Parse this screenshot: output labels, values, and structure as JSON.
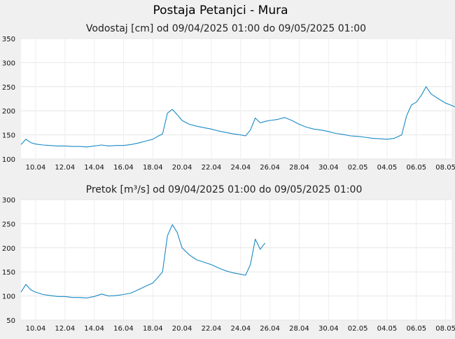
{
  "page": {
    "title": "Postaja Petanjci - Mura"
  },
  "chart_data": [
    {
      "type": "line",
      "title": "Vodostaj [cm] od 09/04/2025 01:00 do 09/05/2025 01:00",
      "xlabel": "",
      "ylabel": "",
      "x_unit": "day",
      "xlim": [
        "2025-04-09",
        "2025-05-08"
      ],
      "xticks": [
        "10.04",
        "12.04",
        "14.04",
        "16.04",
        "18.04",
        "20.04",
        "22.04",
        "24.04",
        "26.04",
        "28.04",
        "30.04",
        "02.05",
        "04.05",
        "06.05",
        "08.05"
      ],
      "ylim": [
        100,
        350
      ],
      "yticks": [
        100,
        150,
        200,
        250,
        300,
        350
      ],
      "grid": true,
      "line_color": "#1a8ac6",
      "series": [
        {
          "name": "",
          "points": [
            [
              "09.04",
              130
            ],
            [
              "09.04",
              141
            ],
            [
              "09.04",
              134
            ],
            [
              "10.04",
              131
            ],
            [
              "10.04",
              129
            ],
            [
              "11.04",
              128
            ],
            [
              "11.04",
              127
            ],
            [
              "12.04",
              127
            ],
            [
              "12.04",
              126
            ],
            [
              "13.04",
              126
            ],
            [
              "13.04",
              125
            ],
            [
              "14.04",
              127
            ],
            [
              "14.04",
              129
            ],
            [
              "15.04",
              127
            ],
            [
              "15.04",
              128
            ],
            [
              "16.04",
              128
            ],
            [
              "16.04",
              130
            ],
            [
              "17.04",
              133
            ],
            [
              "17.04",
              137
            ],
            [
              "18.04",
              141
            ],
            [
              "18.04",
              147
            ],
            [
              "18.04",
              152
            ],
            [
              "19.04",
              195
            ],
            [
              "19.04",
              203
            ],
            [
              "19.04",
              192
            ],
            [
              "20.04",
              180
            ],
            [
              "20.04",
              172
            ],
            [
              "21.04",
              168
            ],
            [
              "21.04",
              165
            ],
            [
              "22.04",
              162
            ],
            [
              "22.04",
              158
            ],
            [
              "23.04",
              155
            ],
            [
              "23.04",
              152
            ],
            [
              "24.04",
              150
            ],
            [
              "24.04",
              148
            ],
            [
              "24.04",
              160
            ],
            [
              "25.04",
              185
            ],
            [
              "25.04",
              175
            ],
            [
              "25.04",
              178
            ],
            [
              "26.04",
              180
            ],
            [
              "26.04",
              182
            ],
            [
              "27.04",
              186
            ],
            [
              "27.04",
              180
            ],
            [
              "28.04",
              172
            ],
            [
              "28.04",
              166
            ],
            [
              "29.04",
              162
            ],
            [
              "29.04",
              160
            ],
            [
              "30.04",
              157
            ],
            [
              "30.04",
              153
            ],
            [
              "01.05",
              151
            ],
            [
              "01.05",
              148
            ],
            [
              "02.05",
              147
            ],
            [
              "02.05",
              145
            ],
            [
              "03.05",
              143
            ],
            [
              "03.05",
              142
            ],
            [
              "04.05",
              141
            ],
            [
              "04.05",
              143
            ],
            [
              "05.05",
              150
            ],
            [
              "05.05",
              190
            ],
            [
              "05.05",
              212
            ],
            [
              "06.05",
              218
            ],
            [
              "06.05",
              232
            ],
            [
              "06.05",
              250
            ],
            [
              "07.05",
              235
            ],
            [
              "07.05",
              225
            ],
            [
              "08.05",
              216
            ],
            [
              "08.05",
              212
            ],
            [
              "08.05",
              208
            ]
          ]
        }
      ]
    },
    {
      "type": "line",
      "title": "Pretok [m³/s] od 09/04/2025 01:00 do 09/05/2025 01:00",
      "xlabel": "",
      "ylabel": "",
      "x_unit": "day",
      "xlim": [
        "2025-04-09",
        "2025-05-08"
      ],
      "xticks": [
        "10.04",
        "12.04",
        "14.04",
        "16.04",
        "18.04",
        "20.04",
        "22.04",
        "24.04",
        "26.04",
        "28.04",
        "30.04",
        "02.05",
        "04.05",
        "06.05",
        "08.05"
      ],
      "ylim": [
        50,
        300
      ],
      "yticks": [
        50,
        100,
        150,
        200,
        250,
        300
      ],
      "grid": true,
      "line_color": "#1a8ac6",
      "series": [
        {
          "name": "",
          "points": [
            [
              "09.04",
              108
            ],
            [
              "09.04",
              124
            ],
            [
              "09.04",
              113
            ],
            [
              "10.04",
              108
            ],
            [
              "10.04",
              103
            ],
            [
              "11.04",
              101
            ],
            [
              "11.04",
              99
            ],
            [
              "12.04",
              99
            ],
            [
              "12.04",
              97
            ],
            [
              "13.04",
              97
            ],
            [
              "13.04",
              96
            ],
            [
              "14.04",
              99
            ],
            [
              "14.04",
              104
            ],
            [
              "15.04",
              100
            ],
            [
              "15.04",
              101
            ],
            [
              "16.04",
              103
            ],
            [
              "16.04",
              106
            ],
            [
              "17.04",
              113
            ],
            [
              "17.04",
              120
            ],
            [
              "18.04",
              127
            ],
            [
              "18.04",
              138
            ],
            [
              "18.04",
              150
            ],
            [
              "19.04",
              225
            ],
            [
              "19.04",
              248
            ],
            [
              "19.04",
              232
            ],
            [
              "20.04",
              200
            ],
            [
              "20.04",
              185
            ],
            [
              "21.04",
              175
            ],
            [
              "21.04",
              170
            ],
            [
              "22.04",
              165
            ],
            [
              "22.04",
              158
            ],
            [
              "23.04",
              152
            ],
            [
              "23.04",
              148
            ],
            [
              "24.04",
              145
            ],
            [
              "24.04",
              143
            ],
            [
              "24.04",
              165
            ],
            [
              "25.04",
              218
            ],
            [
              "25.04",
              197
            ],
            [
              "25.04",
              210
            ]
          ]
        }
      ]
    }
  ]
}
